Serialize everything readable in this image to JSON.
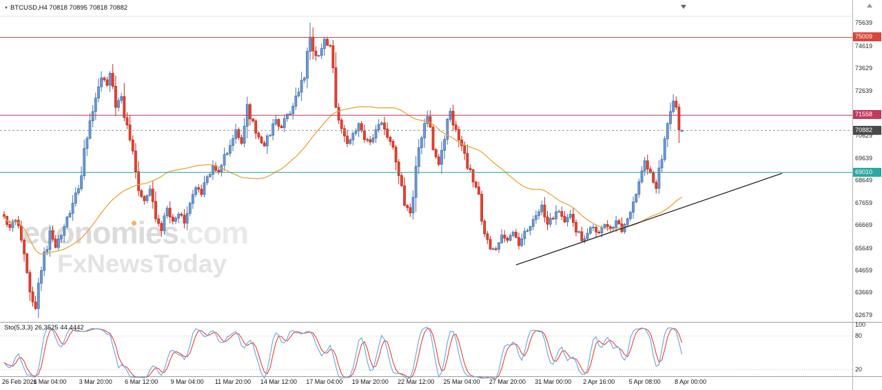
{
  "header": {
    "dropdown_icon": "▼",
    "symbol_info": "BTCUSD,H4 70818 70895 70818 70882"
  },
  "watermark": {
    "brand": "economies",
    "domain": ".com",
    "tagline": "FxNewsToday",
    "accent_color": "#f4a63a"
  },
  "price_axis": {
    "ticks": [
      75639,
      74619,
      73629,
      72639,
      70629,
      69639,
      68649,
      67659,
      66669,
      65649,
      64659,
      63669,
      62679
    ],
    "badges": [
      {
        "value": "75009",
        "price": 75009,
        "color": "#d8453a"
      },
      {
        "value": "71558",
        "price": 71558,
        "color": "#c23a5e"
      },
      {
        "value": "70882",
        "price": 70882,
        "color": "#4a4a4a"
      },
      {
        "value": "69010",
        "price": 69010,
        "color": "#2ba8a0"
      }
    ]
  },
  "levels": [
    {
      "price": 75009,
      "color": "#d8453a",
      "style": "solid",
      "role": "resistance"
    },
    {
      "price": 71558,
      "color": "#c23a5e",
      "style": "solid",
      "role": "resistance"
    },
    {
      "price": 70882,
      "color": "#999999",
      "style": "dash",
      "role": "current-price"
    },
    {
      "price": 69010,
      "color": "#2ba8a0",
      "style": "solid",
      "role": "support"
    }
  ],
  "time_axis": [
    "26 Feb 2026",
    "1 Mar 04:00",
    "3 Mar 20:00",
    "6 Mar 12:00",
    "9 Mar 04:00",
    "11 Mar 20:00",
    "14 Mar 12:00",
    "17 Mar 04:00",
    "19 Mar 20:00",
    "22 Mar 12:00",
    "25 Mar 04:00",
    "27 Mar 20:00",
    "31 Mar 00:00",
    "2 Apr 16:00",
    "5 Apr 08:00",
    "8 Apr 00:00"
  ],
  "indicator": {
    "label": "Sto(5,3,3) 26,3525 44.4442",
    "name": "Sto(5,3,3)",
    "k_value": "26,3525",
    "d_value": "44.4442",
    "axis": [
      {
        "label": "100",
        "value": 100
      },
      {
        "label": "80",
        "value": 80
      },
      {
        "label": "20",
        "value": 20
      }
    ],
    "levels": [
      80,
      20
    ],
    "k_color": "#74a9dc",
    "d_color": "#df2f28"
  },
  "chart_data": {
    "type": "candlestick",
    "symbol": "BTCUSD",
    "timeframe": "H4",
    "visible_price_range": [
      62679,
      75639
    ],
    "ohlc_current": {
      "open": 70818,
      "high": 70895,
      "low": 70818,
      "close": 70882
    },
    "candle_count": 238,
    "high_of_range": 75640,
    "low_of_range": 62900,
    "up_color": "#4472ae",
    "up_fill": "#6f9bd8",
    "down_color": "#c22717",
    "down_fill": "#e84333",
    "ma_color": "#e8a33b",
    "ma_period": 45,
    "trendline": {
      "start_index": 179,
      "start_price": 64900,
      "end_index": 272,
      "end_price": 68960,
      "color": "#111111"
    },
    "price_waypoints": [
      [
        0,
        67050
      ],
      [
        2,
        66500
      ],
      [
        4,
        66950
      ],
      [
        6,
        66200
      ],
      [
        8,
        64600
      ],
      [
        10,
        63150
      ],
      [
        11,
        62950
      ],
      [
        13,
        64700
      ],
      [
        16,
        66400
      ],
      [
        18,
        65700
      ],
      [
        20,
        66200
      ],
      [
        22,
        66900
      ],
      [
        24,
        67600
      ],
      [
        26,
        68300
      ],
      [
        28,
        69800
      ],
      [
        30,
        71300
      ],
      [
        32,
        72500
      ],
      [
        34,
        73250
      ],
      [
        36,
        72900
      ],
      [
        37,
        73300
      ],
      [
        39,
        71900
      ],
      [
        41,
        72300
      ],
      [
        43,
        71100
      ],
      [
        45,
        70000
      ],
      [
        47,
        68300
      ],
      [
        49,
        67700
      ],
      [
        51,
        68200
      ],
      [
        53,
        67000
      ],
      [
        55,
        66500
      ],
      [
        57,
        67400
      ],
      [
        59,
        66900
      ],
      [
        61,
        67200
      ],
      [
        63,
        66800
      ],
      [
        65,
        67800
      ],
      [
        67,
        68400
      ],
      [
        69,
        68100
      ],
      [
        71,
        68800
      ],
      [
        73,
        69300
      ],
      [
        75,
        69000
      ],
      [
        77,
        69700
      ],
      [
        79,
        70300
      ],
      [
        81,
        70900
      ],
      [
        83,
        70400
      ],
      [
        85,
        71900
      ],
      [
        87,
        71200
      ],
      [
        89,
        70500
      ],
      [
        91,
        70100
      ],
      [
        93,
        70800
      ],
      [
        95,
        71300
      ],
      [
        97,
        71000
      ],
      [
        99,
        71500
      ],
      [
        101,
        71900
      ],
      [
        103,
        72600
      ],
      [
        105,
        73400
      ],
      [
        107,
        75100
      ],
      [
        108,
        74500
      ],
      [
        110,
        74100
      ],
      [
        112,
        74900
      ],
      [
        114,
        74500
      ],
      [
        116,
        71800
      ],
      [
        118,
        70900
      ],
      [
        120,
        70300
      ],
      [
        122,
        70800
      ],
      [
        124,
        71100
      ],
      [
        126,
        70500
      ],
      [
        128,
        70300
      ],
      [
        130,
        70900
      ],
      [
        132,
        71200
      ],
      [
        134,
        70600
      ],
      [
        136,
        70100
      ],
      [
        138,
        68800
      ],
      [
        140,
        67600
      ],
      [
        142,
        67100
      ],
      [
        144,
        68900
      ],
      [
        146,
        70800
      ],
      [
        148,
        71400
      ],
      [
        150,
        70200
      ],
      [
        152,
        69300
      ],
      [
        154,
        70500
      ],
      [
        156,
        71700
      ],
      [
        158,
        70900
      ],
      [
        160,
        70100
      ],
      [
        162,
        69300
      ],
      [
        164,
        68600
      ],
      [
        166,
        67900
      ],
      [
        168,
        66300
      ],
      [
        170,
        65700
      ],
      [
        172,
        65600
      ],
      [
        174,
        66300
      ],
      [
        176,
        66000
      ],
      [
        178,
        66400
      ],
      [
        180,
        65800
      ],
      [
        182,
        66300
      ],
      [
        184,
        66700
      ],
      [
        186,
        67100
      ],
      [
        188,
        67500
      ],
      [
        190,
        66800
      ],
      [
        192,
        67000
      ],
      [
        194,
        67300
      ],
      [
        196,
        66800
      ],
      [
        198,
        67200
      ],
      [
        200,
        66500
      ],
      [
        202,
        65950
      ],
      [
        204,
        66300
      ],
      [
        206,
        66600
      ],
      [
        208,
        66300
      ],
      [
        210,
        66700
      ],
      [
        212,
        66500
      ],
      [
        214,
        66800
      ],
      [
        216,
        66400
      ],
      [
        218,
        66800
      ],
      [
        220,
        67600
      ],
      [
        222,
        68600
      ],
      [
        224,
        69600
      ],
      [
        226,
        68900
      ],
      [
        228,
        68300
      ],
      [
        230,
        69600
      ],
      [
        232,
        71300
      ],
      [
        234,
        72100
      ],
      [
        235,
        71800
      ],
      [
        236,
        70820
      ],
      [
        237,
        70882
      ]
    ]
  }
}
